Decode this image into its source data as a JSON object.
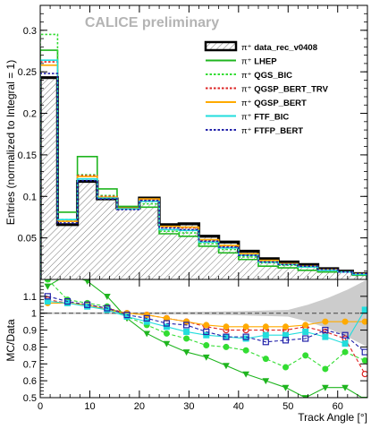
{
  "figure": {
    "watermark": "CALICE preliminary",
    "xlabel": "Track Angle [°]",
    "top_ylabel": "Entries (normalized to Integral = 1)",
    "bottom_ylabel": "MC/Data"
  },
  "chart_data": [
    {
      "type": "line",
      "panel": "distribution",
      "step": true,
      "x_edges": [
        0,
        3.5,
        7.5,
        11.5,
        15.5,
        20,
        24,
        28,
        32,
        36,
        40,
        44,
        48,
        52,
        56,
        60,
        63,
        66
      ],
      "xlim": [
        0,
        66
      ],
      "ylim": [
        0,
        0.33
      ],
      "xticks": [
        0,
        10,
        20,
        30,
        40,
        50,
        60
      ],
      "yticks": [
        0.05,
        0.1,
        0.15,
        0.2,
        0.25,
        0.3
      ],
      "ytick_labels": [
        "0.05",
        "0.1",
        "0.15",
        "0.2",
        "0.25",
        "0.3"
      ],
      "legend_position": "top-right",
      "series": [
        {
          "name": "data_rec_v0408",
          "prefix": "π⁺",
          "color": "#000000",
          "style": "data",
          "values": [
            0.243,
            0.066,
            0.118,
            0.097,
            0.086,
            0.098,
            0.066,
            0.067,
            0.052,
            0.045,
            0.034,
            0.025,
            0.021,
            0.018,
            0.013,
            0.01,
            0.007
          ]
        },
        {
          "name": "LHEP",
          "prefix": "π⁺",
          "color": "#1fb51f",
          "style": "solid",
          "values": [
            0.276,
            0.081,
            0.148,
            0.109,
            0.088,
            0.087,
            0.055,
            0.052,
            0.04,
            0.032,
            0.024,
            0.016,
            0.014,
            0.011,
            0.009,
            0.009,
            0.005
          ]
        },
        {
          "name": "QGS_BIC",
          "prefix": "π⁺",
          "color": "#33dd33",
          "style": "dotted",
          "values": [
            0.295,
            0.072,
            0.126,
            0.101,
            0.085,
            0.091,
            0.058,
            0.056,
            0.043,
            0.036,
            0.027,
            0.02,
            0.017,
            0.015,
            0.011,
            0.009,
            0.006
          ]
        },
        {
          "name": "QGSP_BERT_TRV",
          "prefix": "π⁺",
          "color": "#dd2222",
          "style": "dotted",
          "values": [
            0.262,
            0.07,
            0.125,
            0.1,
            0.086,
            0.096,
            0.063,
            0.062,
            0.047,
            0.04,
            0.03,
            0.022,
            0.019,
            0.016,
            0.012,
            0.009,
            0.007
          ]
        },
        {
          "name": "QGSP_BERT",
          "prefix": "π⁺",
          "color": "#ffaa00",
          "style": "solid",
          "values": [
            0.258,
            0.07,
            0.124,
            0.099,
            0.086,
            0.097,
            0.064,
            0.063,
            0.048,
            0.041,
            0.031,
            0.023,
            0.019,
            0.016,
            0.012,
            0.009,
            0.007
          ]
        },
        {
          "name": "FTF_BIC",
          "prefix": "π⁺",
          "color": "#22dddd",
          "style": "solid",
          "values": [
            0.264,
            0.072,
            0.121,
            0.098,
            0.085,
            0.094,
            0.06,
            0.059,
            0.045,
            0.038,
            0.029,
            0.021,
            0.018,
            0.015,
            0.011,
            0.009,
            0.006
          ]
        },
        {
          "name": "FTFP_BERT",
          "prefix": "π⁺",
          "color": "#2222aa",
          "style": "dotted",
          "values": [
            0.248,
            0.068,
            0.119,
            0.097,
            0.084,
            0.095,
            0.062,
            0.06,
            0.046,
            0.039,
            0.029,
            0.021,
            0.018,
            0.016,
            0.012,
            0.009,
            0.007
          ]
        }
      ]
    },
    {
      "type": "line",
      "panel": "ratio",
      "x": [
        1.5,
        5.5,
        9.5,
        13.5,
        17.5,
        21.5,
        25.5,
        29.5,
        33.5,
        37.5,
        41.5,
        45.5,
        49.5,
        53.5,
        57.5,
        61.5,
        65.5
      ],
      "xlim": [
        0,
        66
      ],
      "ylim": [
        0.5,
        1.2
      ],
      "xticks": [
        0,
        10,
        20,
        30,
        40,
        50,
        60
      ],
      "yticks": [
        0.5,
        0.6,
        0.7,
        0.8,
        0.9,
        1,
        1.1
      ],
      "ytick_labels": [
        "0.5",
        "0.6",
        "0.7",
        "0.8",
        "0.9",
        "1",
        "1.1"
      ],
      "data_band": {
        "color": "#cccccc",
        "x": [
          0,
          10,
          20,
          30,
          40,
          50,
          54,
          58,
          62,
          66
        ],
        "upper": [
          1.005,
          1.005,
          1.006,
          1.008,
          1.012,
          1.02,
          1.05,
          1.09,
          1.14,
          1.2
        ],
        "lower": [
          0.995,
          0.995,
          0.994,
          0.992,
          0.988,
          0.98,
          0.95,
          0.91,
          0.86,
          0.8
        ]
      },
      "series": [
        {
          "name": "LHEP",
          "color": "#1fb51f",
          "marker": "triangle-down",
          "dashed": false,
          "values": [
            1.16,
            1.23,
            1.19,
            1.1,
            0.97,
            0.88,
            0.82,
            0.77,
            0.74,
            0.69,
            0.64,
            0.6,
            0.56,
            0.5,
            0.56,
            0.56,
            0.49
          ]
        },
        {
          "name": "QGS_BIC",
          "color": "#33dd33",
          "marker": "circle",
          "dashed": true,
          "values": [
            1.2,
            1.08,
            1.06,
            1.04,
            0.98,
            0.93,
            0.88,
            0.85,
            0.81,
            0.8,
            0.78,
            0.73,
            0.68,
            0.75,
            0.67,
            0.77,
            0.72
          ]
        },
        {
          "name": "QGSP_BERT_TRV",
          "color": "#dd2222",
          "marker": "circle-open",
          "dashed": true,
          "values": [
            1.08,
            1.06,
            1.05,
            1.03,
            1.0,
            0.99,
            0.97,
            0.95,
            0.92,
            0.9,
            0.9,
            0.9,
            0.9,
            0.92,
            0.89,
            0.85,
            0.64
          ]
        },
        {
          "name": "QGSP_BERT",
          "color": "#ffaa00",
          "marker": "circle",
          "dashed": false,
          "values": [
            1.06,
            1.06,
            1.05,
            1.02,
            1.0,
            0.99,
            0.97,
            0.95,
            0.93,
            0.92,
            0.92,
            0.92,
            0.92,
            0.93,
            0.95,
            0.95,
            0.95
          ]
        },
        {
          "name": "FTF_BIC",
          "color": "#22dddd",
          "marker": "square",
          "dashed": false,
          "values": [
            1.07,
            1.06,
            1.04,
            1.02,
            0.98,
            0.95,
            0.92,
            0.89,
            0.87,
            0.86,
            0.85,
            0.87,
            0.87,
            0.89,
            0.86,
            0.82,
            1.02
          ]
        },
        {
          "name": "FTFP_BERT",
          "color": "#2222aa",
          "marker": "square-open",
          "dashed": true,
          "values": [
            1.1,
            1.07,
            1.05,
            1.03,
            0.99,
            0.97,
            0.94,
            0.93,
            0.89,
            0.86,
            0.86,
            0.83,
            0.84,
            0.85,
            0.9,
            0.87,
            0.77
          ]
        }
      ]
    }
  ]
}
